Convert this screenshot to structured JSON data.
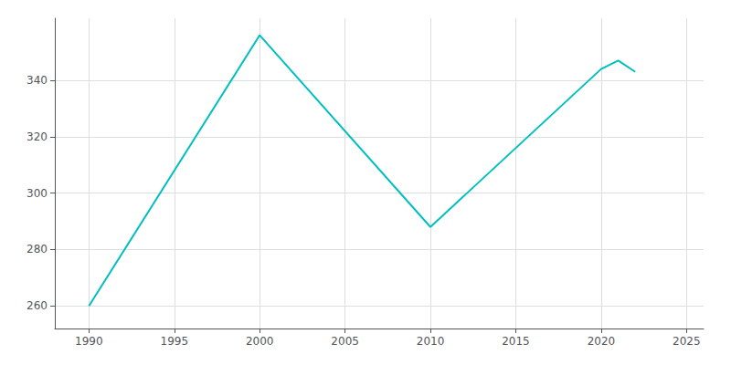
{
  "chart_data": {
    "type": "line",
    "x": [
      1990,
      2000,
      2010,
      2020,
      2021,
      2022
    ],
    "values": [
      260,
      356,
      288,
      344,
      347,
      343
    ],
    "color": "#00BFBF",
    "xlim": [
      1988,
      2026
    ],
    "ylim": [
      252,
      362
    ],
    "xticks": [
      1990,
      1995,
      2000,
      2005,
      2010,
      2015,
      2020,
      2025
    ],
    "yticks": [
      260,
      280,
      300,
      320,
      340
    ],
    "grid": true
  }
}
